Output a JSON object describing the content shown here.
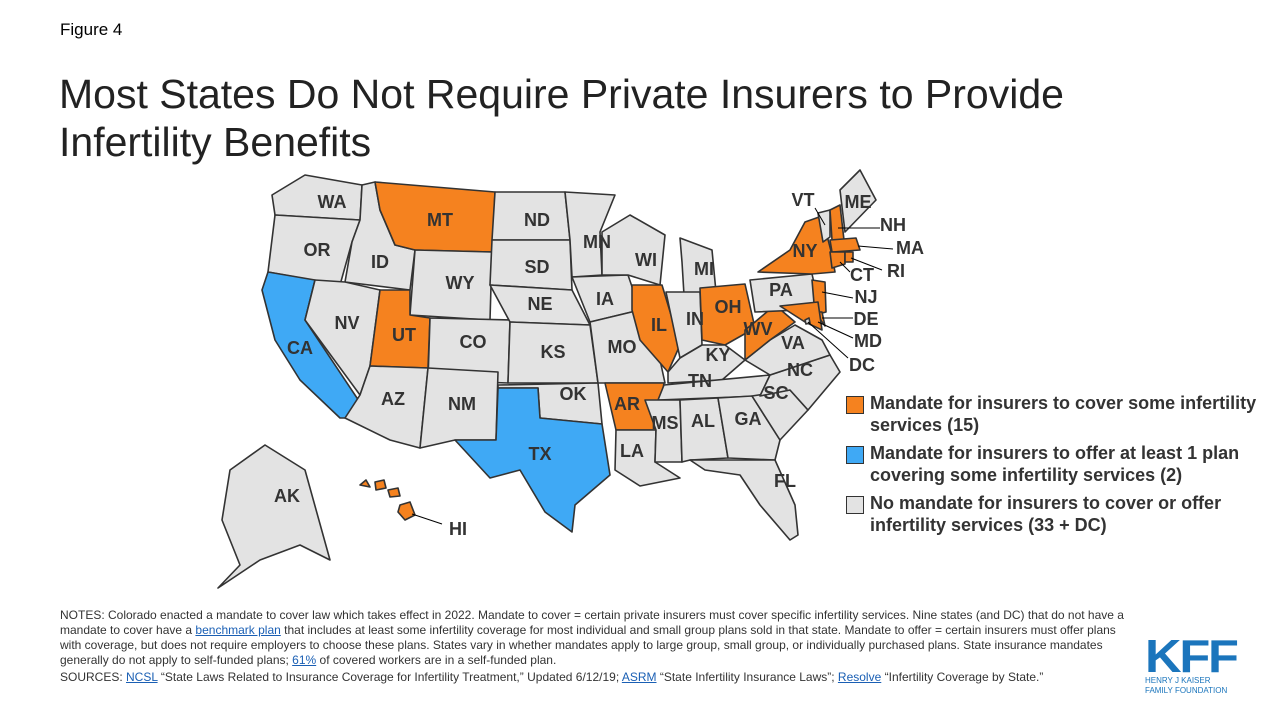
{
  "figure_label": "Figure 4",
  "title": "Most States Do Not Require Private Insurers to Provide Infertility Benefits",
  "colors": {
    "cover": "#f5821f",
    "offer": "#3fa9f5",
    "none": "#e3e3e3",
    "border": "#333333"
  },
  "legend": [
    {
      "category": "cover",
      "label": "Mandate for insurers to cover some infertility services (15)"
    },
    {
      "category": "offer",
      "label": "Mandate for insurers to offer at least 1 plan covering some infertility services (2)"
    },
    {
      "category": "none",
      "label": "No mandate for insurers to cover or offer infertility services (33 + DC)"
    }
  ],
  "states": {
    "WA": "none",
    "OR": "none",
    "CA": "offer",
    "ID": "none",
    "NV": "none",
    "MT": "cover",
    "WY": "none",
    "UT": "cover",
    "CO": "none",
    "AZ": "none",
    "NM": "none",
    "ND": "none",
    "SD": "none",
    "NE": "none",
    "KS": "none",
    "OK": "none",
    "TX": "offer",
    "MN": "none",
    "IA": "none",
    "MO": "none",
    "AR": "cover",
    "LA": "none",
    "WI": "none",
    "IL": "cover",
    "MI": "none",
    "IN": "none",
    "OH": "cover",
    "KY": "none",
    "TN": "none",
    "MS": "none",
    "AL": "none",
    "GA": "none",
    "FL": "none",
    "SC": "none",
    "NC": "none",
    "VA": "none",
    "WV": "cover",
    "PA": "none",
    "NY": "cover",
    "VT": "none",
    "NH": "cover",
    "ME": "none",
    "MA": "cover",
    "CT": "cover",
    "RI": "cover",
    "NJ": "cover",
    "DE": "cover",
    "MD": "cover",
    "DC": "none",
    "AK": "none",
    "HI": "cover"
  },
  "notes": {
    "p1": "NOTES: Colorado enacted a mandate to cover law which takes effect in 2022. Mandate to cover = certain private insurers must cover specific infertility services. Nine states (and DC) that do not have a mandate to cover have a ",
    "link1": "benchmark plan",
    "p2": " that includes at least some infertility coverage for most individual and small group plans sold in that state. Mandate to offer = certain insurers must offer plans with coverage, but does not require employers to choose these plans. States vary in whether mandates apply to large group, small group, or individually purchased plans. State insurance mandates generally do not apply to self-funded plans; ",
    "link2": "61%",
    "p3": " of covered workers are in a self-funded plan.",
    "s0": "SOURCES: ",
    "slink1": "NCSL",
    "s1": " “State Laws Related to Insurance Coverage for Infertility Treatment,” Updated 6/12/19; ",
    "slink2": "ASRM",
    "s2": " “State Infertility Insurance Laws”; ",
    "slink3": "Resolve",
    "s3": " “Infertility Coverage by State.”"
  },
  "logo": {
    "mark": "KFF",
    "line1": "HENRY J KAISER",
    "line2": "FAMILY FOUNDATION"
  }
}
